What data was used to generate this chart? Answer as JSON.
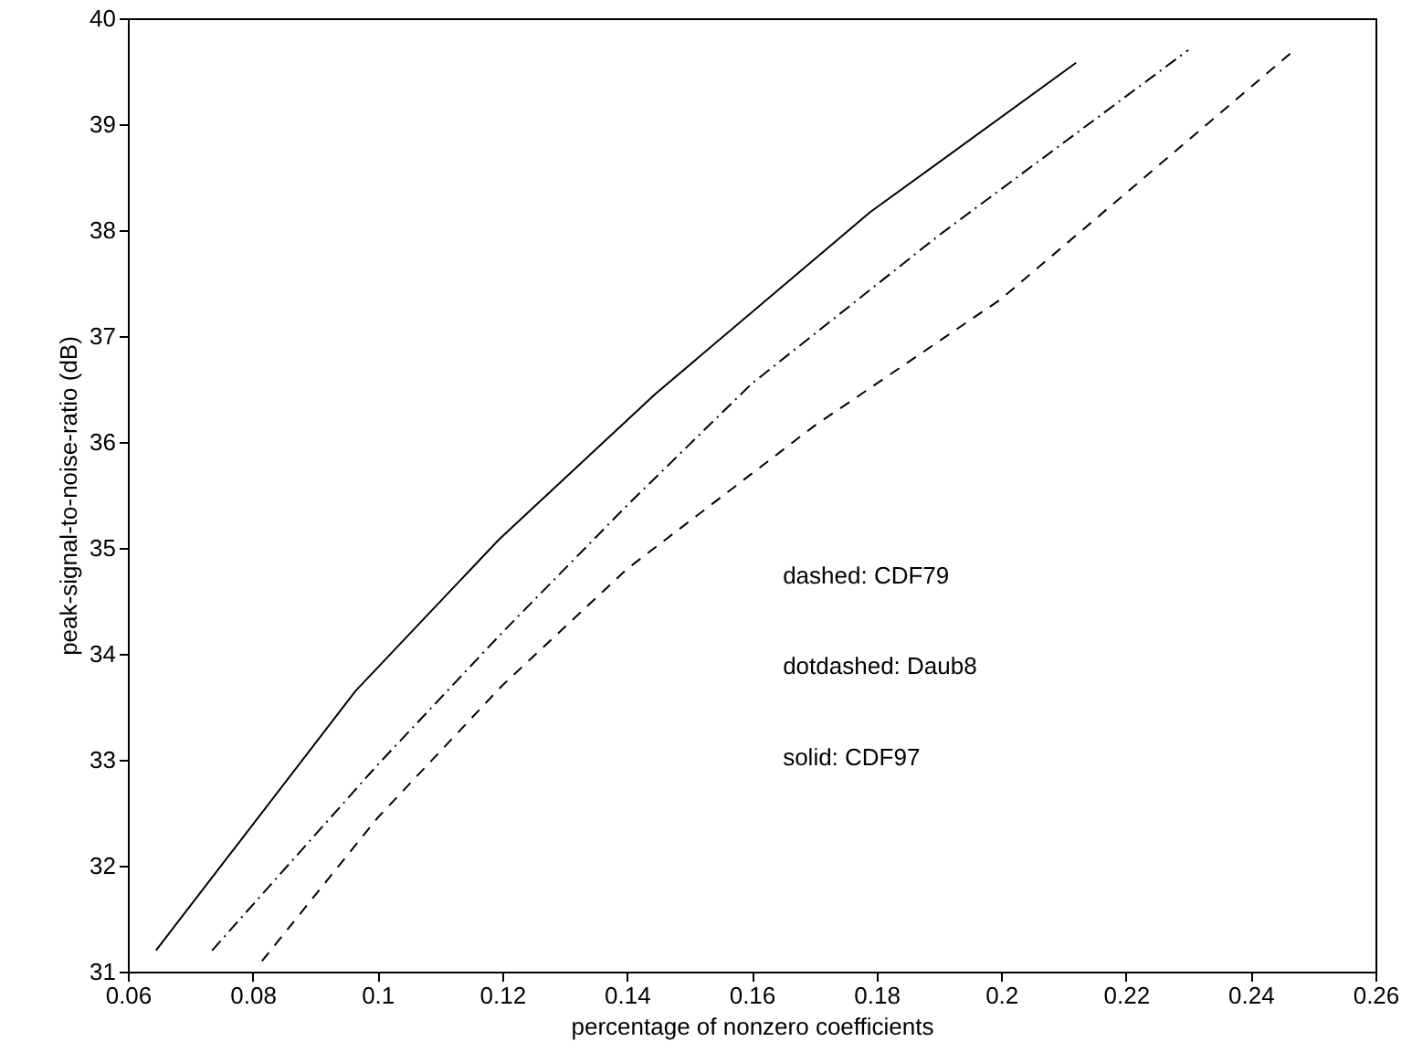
{
  "chart_data": {
    "type": "line",
    "xlabel": "percentage of nonzero coefficients",
    "ylabel": "peak-signal-to-noise-ratio (dB)",
    "xlim": [
      0.06,
      0.26
    ],
    "xticks": [
      0.06,
      0.08,
      0.1,
      0.12,
      0.14,
      0.16,
      0.18,
      0.2,
      0.22,
      0.24,
      0.26
    ],
    "ylim": [
      31,
      40
    ],
    "yticks": [
      31,
      32,
      33,
      34,
      35,
      36,
      37,
      38,
      39,
      40
    ],
    "grid": false,
    "marker": "none",
    "annotations": [
      "dashed: CDF79",
      "dotdashed: Daub8",
      "solid: CDF97"
    ],
    "series": [
      {
        "color": "#000000",
        "line_style": "solid",
        "x": [
          0.0645,
          0.0965,
          0.1195,
          0.1445,
          0.179,
          0.212
        ],
        "values": [
          31.2,
          33.65,
          35.08,
          36.45,
          38.17,
          39.58
        ]
      },
      {
        "color": "#000000",
        "line_style": "dashdot",
        "x": [
          0.0735,
          0.1,
          0.12,
          0.14,
          0.16,
          0.19,
          0.23
        ],
        "values": [
          31.2,
          32.95,
          34.2,
          35.4,
          36.55,
          37.95,
          39.7
        ]
      },
      {
        "color": "#000000",
        "line_style": "dashed",
        "x": [
          0.0815,
          0.1,
          0.12,
          0.14,
          0.17,
          0.2,
          0.247
        ],
        "values": [
          31.1,
          32.45,
          33.7,
          34.8,
          36.15,
          37.35,
          39.7
        ]
      }
    ]
  }
}
